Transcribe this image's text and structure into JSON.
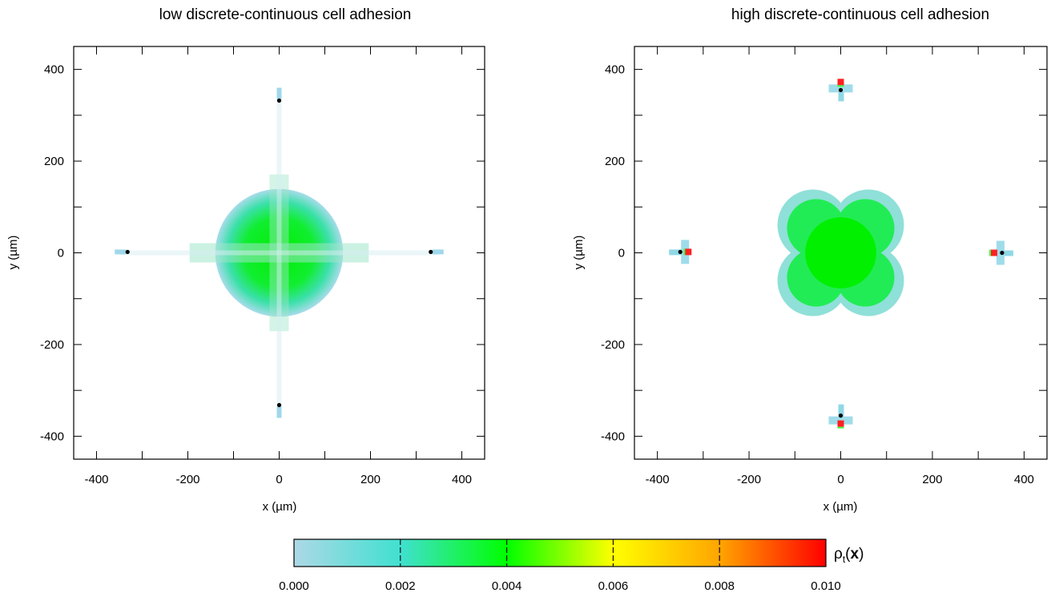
{
  "chart_data": [
    {
      "type": "heatmap",
      "title": "low discrete-continuous cell adhesion",
      "xlabel": "x (µm)",
      "ylabel": "y (µm)",
      "xlim": [
        -450,
        450
      ],
      "ylim": [
        -450,
        450
      ],
      "xticks": [
        -400,
        -200,
        0,
        200,
        400
      ],
      "yticks": [
        400,
        200,
        0,
        -200,
        -400
      ],
      "xticklabels": [
        "-400",
        "-200",
        "0",
        "200",
        "400"
      ],
      "yticklabels": [
        "400",
        "200",
        "0",
        "-200",
        "-400"
      ],
      "central_density": {
        "shape": "disk",
        "radius_um": 140,
        "peak_value": 0.004
      },
      "discrete_cells": [
        {
          "x": 0,
          "y": 332
        },
        {
          "x": -332,
          "y": 2
        },
        {
          "x": 332,
          "y": 2
        },
        {
          "x": 0,
          "y": -332
        }
      ]
    },
    {
      "type": "heatmap",
      "title": "high discrete-continuous cell adhesion",
      "xlabel": "x (µm)",
      "ylabel": "y (µm)",
      "xlim": [
        -450,
        450
      ],
      "ylim": [
        -450,
        450
      ],
      "xticks": [
        -400,
        -200,
        0,
        200,
        400
      ],
      "yticks": [
        400,
        200,
        0,
        -200,
        -400
      ],
      "xticklabels": [
        "-400",
        "-200",
        "0",
        "200",
        "400"
      ],
      "yticklabels": [
        "400",
        "200",
        "0",
        "-200",
        "-400"
      ],
      "central_density": {
        "shape": "four-lobed cross",
        "radius_um": 125,
        "peak_value": 0.004
      },
      "discrete_cells": [
        {
          "x": 0,
          "y": 355,
          "adjacent_density_peak": 0.01
        },
        {
          "x": -350,
          "y": 2,
          "adjacent_density_peak": 0.01
        },
        {
          "x": 352,
          "y": 0,
          "adjacent_density_peak": 0.01
        },
        {
          "x": 0,
          "y": -355,
          "adjacent_density_peak": 0.01
        }
      ]
    }
  ],
  "colorbar": {
    "label_main": "ρ",
    "label_sub": "t",
    "label_arg": "x",
    "min": 0.0,
    "max": 0.01,
    "ticks": [
      "0.000",
      "0.002",
      "0.004",
      "0.006",
      "0.008",
      "0.010"
    ],
    "colors": [
      "#add8e6",
      "#40e0d0",
      "#00ff00",
      "#ffff00",
      "#ffa500",
      "#ff0000"
    ]
  }
}
